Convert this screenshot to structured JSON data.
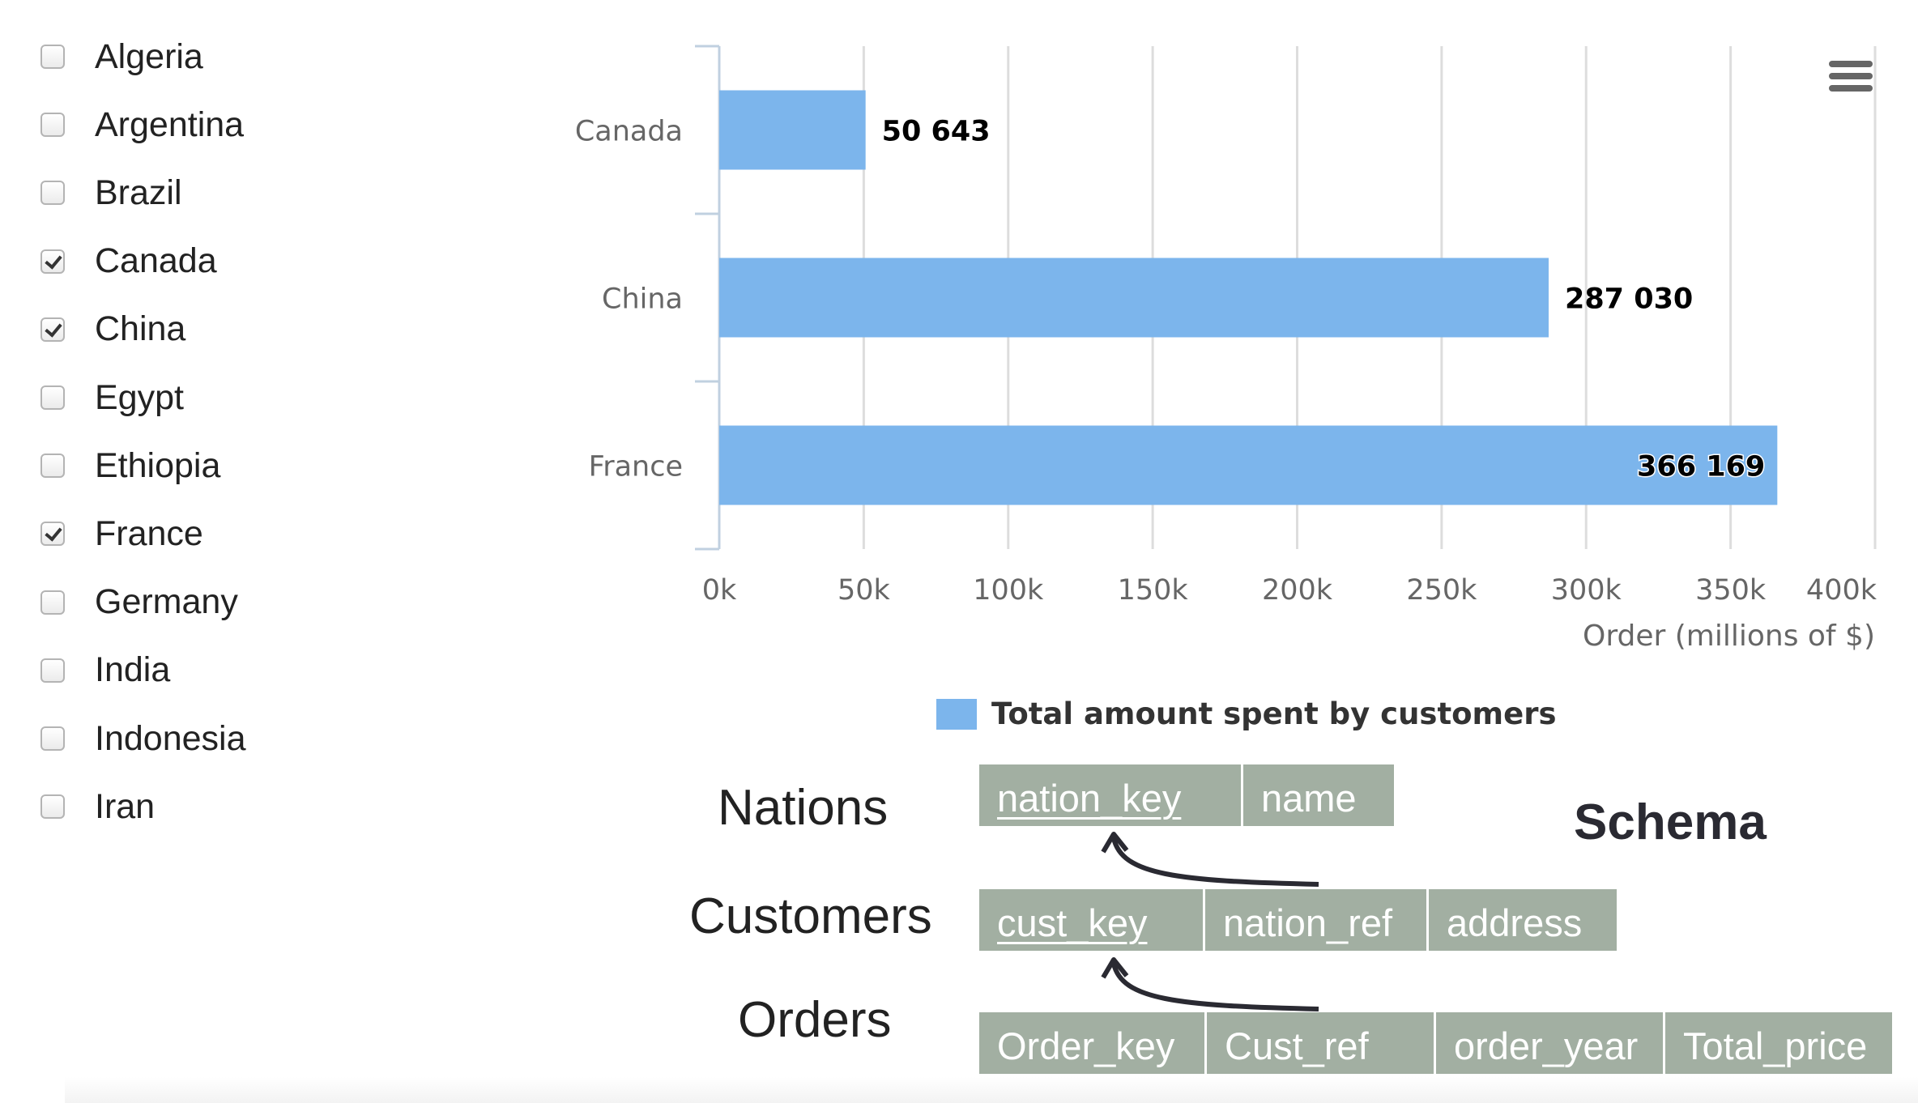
{
  "countries": [
    {
      "name": "Algeria",
      "checked": false
    },
    {
      "name": "Argentina",
      "checked": false
    },
    {
      "name": "Brazil",
      "checked": false
    },
    {
      "name": "Canada",
      "checked": true
    },
    {
      "name": "China",
      "checked": true
    },
    {
      "name": "Egypt",
      "checked": false
    },
    {
      "name": "Ethiopia",
      "checked": false
    },
    {
      "name": "France",
      "checked": true
    },
    {
      "name": "Germany",
      "checked": false
    },
    {
      "name": "India",
      "checked": false
    },
    {
      "name": "Indonesia",
      "checked": false
    },
    {
      "name": "Iran",
      "checked": false
    }
  ],
  "chart_data": {
    "type": "bar",
    "orientation": "horizontal",
    "categories": [
      "Canada",
      "China",
      "France"
    ],
    "series": [
      {
        "name": "Total amount spent by customers",
        "values": [
          50643,
          287030,
          366169
        ],
        "color": "#7cb5ec"
      }
    ],
    "data_labels": [
      "50 643",
      "287 030",
      "366 169"
    ],
    "xlabel": "Order (millions of $)",
    "xticks": [
      "0k",
      "50k",
      "100k",
      "150k",
      "200k",
      "250k",
      "300k",
      "350k",
      "400k"
    ],
    "xlim": [
      0,
      400000
    ],
    "grid": true,
    "legend": "bottom-center"
  },
  "chart_menu_icon": "hamburger-menu-icon",
  "legend": {
    "label": "Total amount spent by customers",
    "color": "#7cb5ec"
  },
  "schema": {
    "title": "Schema",
    "tables": [
      {
        "name": "Nations",
        "columns": [
          {
            "label": "nation_key",
            "key": true
          },
          {
            "label": "name",
            "key": false
          }
        ]
      },
      {
        "name": "Customers",
        "columns": [
          {
            "label": "cust_key",
            "key": true
          },
          {
            "label": "nation_ref",
            "key": false
          },
          {
            "label": "address",
            "key": false
          }
        ]
      },
      {
        "name": "Orders",
        "columns": [
          {
            "label": "Order_key",
            "key": false
          },
          {
            "label": "Cust_ref",
            "key": false
          },
          {
            "label": "order_year",
            "key": false
          },
          {
            "label": "Total_price",
            "key": false
          }
        ]
      }
    ],
    "cell_color": "#a2afa2"
  }
}
